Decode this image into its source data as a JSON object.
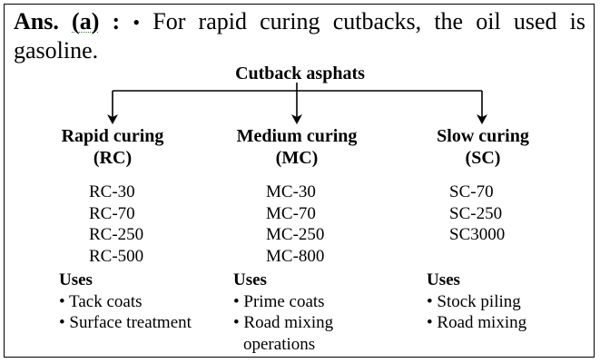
{
  "answer": {
    "label": "Ans.",
    "option": "(a)",
    "colon": ":",
    "bullet": "•",
    "text": "For rapid curing cutbacks, the oil used is gasoline."
  },
  "diagram": {
    "root": "Cutback asphats",
    "branches": [
      {
        "title": "Rapid curing",
        "code": "(RC)",
        "grades": [
          "RC-30",
          "RC-70",
          "RC-250",
          "RC-500"
        ],
        "uses_title": "Uses",
        "uses": [
          "• Tack coats",
          "• Surface treatment"
        ]
      },
      {
        "title": "Medium curing",
        "code": "(MC)",
        "grades": [
          "MC-30",
          "MC-70",
          "MC-250",
          "MC-800"
        ],
        "uses_title": "Uses",
        "uses": [
          "• Prime coats",
          "• Road mixing",
          "operations"
        ]
      },
      {
        "title": "Slow curing",
        "code": "(SC)",
        "grades": [
          "SC-70",
          "SC-250",
          "SC3000"
        ],
        "uses_title": "Uses",
        "uses": [
          "• Stock piling",
          "• Road mixing"
        ]
      }
    ]
  }
}
